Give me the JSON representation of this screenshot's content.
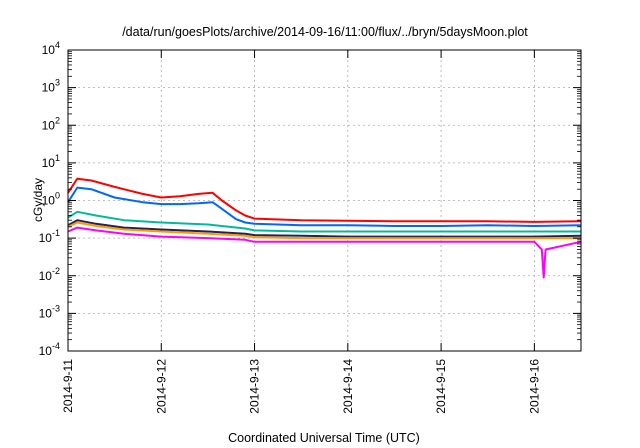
{
  "chart_data": {
    "type": "line",
    "title": "/data/run/goesPlots/archive/2014-09-16/11:00/flux/../bryn/5daysMoon.plot",
    "xlabel": "Coordinated Universal Time (UTC)",
    "ylabel": "cGy/day",
    "yscale": "log",
    "ylim": [
      0.0001,
      10000
    ],
    "xlim": [
      0,
      5.5
    ],
    "grid": true,
    "x_tick_labels": [
      "2014-9-11",
      "2014-9-12",
      "2014-9-13",
      "2014-9-14",
      "2014-9-15",
      "2014-9-16"
    ],
    "y_ticks": [
      {
        "base": "10",
        "exp": "-4"
      },
      {
        "base": "10",
        "exp": "-3"
      },
      {
        "base": "10",
        "exp": "-2"
      },
      {
        "base": "10",
        "exp": "-1"
      },
      {
        "base": "10",
        "exp": "0"
      },
      {
        "base": "10",
        "exp": "1"
      },
      {
        "base": "10",
        "exp": "2"
      },
      {
        "base": "10",
        "exp": "3"
      },
      {
        "base": "10",
        "exp": "4"
      }
    ],
    "series": [
      {
        "color": "#ff0000",
        "x": [
          0,
          0.1,
          0.25,
          0.5,
          0.8,
          1.0,
          1.2,
          1.4,
          1.55,
          1.65,
          1.8,
          1.9,
          2.0,
          2.5,
          3.0,
          3.5,
          4.0,
          4.5,
          5.0,
          5.5
        ],
        "y": [
          1.6,
          3.8,
          3.4,
          2.3,
          1.5,
          1.2,
          1.3,
          1.5,
          1.6,
          1.0,
          0.55,
          0.4,
          0.33,
          0.3,
          0.29,
          0.28,
          0.28,
          0.28,
          0.27,
          0.28
        ]
      },
      {
        "color": "#0066ff",
        "x": [
          0,
          0.1,
          0.25,
          0.5,
          0.8,
          1.0,
          1.2,
          1.4,
          1.55,
          1.65,
          1.8,
          1.9,
          2.0,
          2.5,
          3.0,
          3.5,
          4.0,
          4.5,
          5.0,
          5.5
        ],
        "y": [
          0.9,
          2.2,
          2.0,
          1.2,
          0.9,
          0.8,
          0.8,
          0.85,
          0.9,
          0.6,
          0.32,
          0.26,
          0.24,
          0.22,
          0.22,
          0.21,
          0.21,
          0.22,
          0.21,
          0.22
        ]
      },
      {
        "color": "#00bb99",
        "x": [
          0,
          0.1,
          0.3,
          0.6,
          1.0,
          1.5,
          1.9,
          2.0,
          2.5,
          3.0,
          3.5,
          4.0,
          4.5,
          5.0,
          5.5
        ],
        "y": [
          0.35,
          0.5,
          0.4,
          0.3,
          0.26,
          0.23,
          0.18,
          0.16,
          0.15,
          0.15,
          0.15,
          0.15,
          0.15,
          0.15,
          0.15
        ]
      },
      {
        "color": "#222255",
        "x": [
          0,
          0.1,
          0.3,
          0.6,
          1.0,
          1.5,
          1.9,
          2.0,
          2.5,
          3.0,
          3.5,
          4.0,
          4.5,
          5.0,
          5.5
        ],
        "y": [
          0.22,
          0.3,
          0.24,
          0.19,
          0.17,
          0.15,
          0.13,
          0.12,
          0.115,
          0.11,
          0.11,
          0.11,
          0.11,
          0.11,
          0.115
        ]
      },
      {
        "color": "#ff9900",
        "x": [
          0,
          0.1,
          0.3,
          0.6,
          1.0,
          1.5,
          1.9,
          2.0,
          2.5,
          3.0,
          3.5,
          4.0,
          4.5,
          5.0,
          5.5
        ],
        "y": [
          0.2,
          0.26,
          0.21,
          0.17,
          0.15,
          0.13,
          0.115,
          0.105,
          0.1,
          0.1,
          0.1,
          0.1,
          0.1,
          0.1,
          0.1
        ]
      },
      {
        "color": "#ff00ff",
        "x": [
          0,
          0.1,
          0.3,
          0.6,
          1.0,
          1.5,
          1.9,
          2.0,
          2.5,
          3.0,
          3.5,
          4.0,
          4.5,
          5.0,
          5.08,
          5.1,
          5.12,
          5.5
        ],
        "y": [
          0.15,
          0.19,
          0.16,
          0.13,
          0.11,
          0.1,
          0.09,
          0.08,
          0.08,
          0.08,
          0.08,
          0.08,
          0.08,
          0.08,
          0.05,
          0.009,
          0.05,
          0.08
        ]
      }
    ]
  }
}
